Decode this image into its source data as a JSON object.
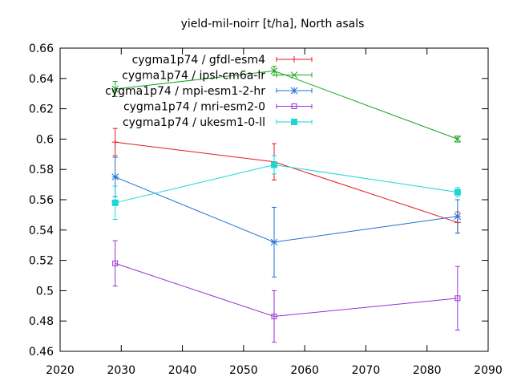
{
  "chart_data": {
    "type": "line",
    "title": "yield-mil-noirr [t/ha], North asals",
    "xlabel": "",
    "ylabel": "",
    "xlim": [
      2020,
      2090
    ],
    "ylim": [
      0.46,
      0.66
    ],
    "x_ticks": [
      2020,
      2030,
      2040,
      2050,
      2060,
      2070,
      2080,
      2090
    ],
    "y_ticks": [
      0.46,
      0.48,
      0.5,
      0.52,
      0.54,
      0.56,
      0.58,
      0.6,
      0.62,
      0.64,
      0.66
    ],
    "y_tick_labels": [
      "0.46",
      "0.48",
      "0.5",
      "0.52",
      "0.54",
      "0.56",
      "0.58",
      "0.6",
      "0.62",
      "0.64",
      "0.66"
    ],
    "x_tick_labels": [
      "2020",
      "2030",
      "2040",
      "2050",
      "2060",
      "2070",
      "2080",
      "2090"
    ],
    "grid": false,
    "legend_position": "top-center",
    "series": [
      {
        "name": "cygma1p74 / gfdl-esm4",
        "color": "#e41a1c",
        "marker": "plus",
        "x": [
          2029,
          2055,
          2085
        ],
        "y": [
          0.598,
          0.585,
          0.545
        ],
        "err": [
          0.009,
          0.012,
          0.007
        ]
      },
      {
        "name": "cygma1p74 / ipsl-cm6a-lr",
        "color": "#1aa51a",
        "marker": "x",
        "x": [
          2029,
          2055,
          2085
        ],
        "y": [
          0.633,
          0.645,
          0.6
        ],
        "err": [
          0.005,
          0.003,
          0.002
        ]
      },
      {
        "name": "cygma1p74 / mpi-esm1-2-hr",
        "color": "#1f6fd1",
        "marker": "star",
        "x": [
          2029,
          2055,
          2085
        ],
        "y": [
          0.575,
          0.532,
          0.549
        ],
        "err": [
          0.013,
          0.023,
          0.011
        ]
      },
      {
        "name": "cygma1p74 / mri-esm2-0",
        "color": "#9a2fd6",
        "marker": "square-open",
        "x": [
          2029,
          2055,
          2085
        ],
        "y": [
          0.518,
          0.483,
          0.495
        ],
        "err": [
          0.015,
          0.017,
          0.021
        ]
      },
      {
        "name": "cygma1p74 / ukesm1-0-ll",
        "color": "#1ad6d6",
        "marker": "square-filled",
        "x": [
          2029,
          2055,
          2085
        ],
        "y": [
          0.558,
          0.583,
          0.565
        ],
        "err": [
          0.011,
          0.006,
          0.003
        ]
      }
    ]
  }
}
